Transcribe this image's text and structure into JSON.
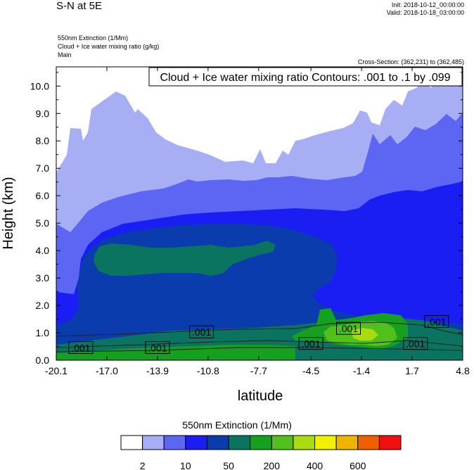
{
  "header": {
    "title": "S-N at 5E",
    "init": "Init: 2018-10-12_00:00:00",
    "valid": "Valid: 2018-10-18_03:00:00",
    "field_lines": [
      "550nm Extinction   (1/Mm)",
      "Cloud + Ice water mixing ratio   (g/kg)",
      "Main"
    ],
    "cross_section": "Cross-Section: (362,231) to (362,485)"
  },
  "chart_data": {
    "type": "heatmap",
    "xlabel": "latitude",
    "ylabel": "Height (km)",
    "xlim": [
      -20.1,
      4.8
    ],
    "ylim": [
      0,
      10.7
    ],
    "xticks": [
      "-20.1",
      "-17.0",
      "-13.9",
      "-10.8",
      "-7.7",
      "-4.5",
      "-1.4",
      "1.7",
      "4.8"
    ],
    "yticks": [
      "0.0",
      "1.0",
      "2.0",
      "3.0",
      "4.0",
      "5.0",
      "6.0",
      "7.0",
      "8.0",
      "9.0",
      "10.0"
    ],
    "contour_box": "Cloud + Ice water mixing ratio Contours: .001 to .1 by .099",
    "contour_labels": [
      {
        "text": ".001",
        "x": -18.6,
        "y": 0.45
      },
      {
        "text": ".001",
        "x": -13.9,
        "y": 0.45
      },
      {
        "text": ".001",
        "x": -11.2,
        "y": 1.02
      },
      {
        "text": ".001",
        "x": -4.5,
        "y": 0.6
      },
      {
        "text": ".001",
        "x": -2.2,
        "y": 1.15
      },
      {
        "text": ".001",
        "x": 1.9,
        "y": 0.6
      },
      {
        "text": ".001",
        "x": 3.2,
        "y": 1.4
      }
    ],
    "colorbar": {
      "title": "550nm Extinction  (1/Mm)",
      "colors": [
        "#ffffff",
        "#a8aef4",
        "#5c66f2",
        "#1a1ef2",
        "#0a3cae",
        "#0a7460",
        "#16a020",
        "#52c01c",
        "#a8dc10",
        "#f0f000",
        "#f0b400",
        "#f06000",
        "#f01010"
      ],
      "labels": [
        "2",
        "10",
        "50",
        "200",
        "400",
        "600"
      ]
    }
  }
}
